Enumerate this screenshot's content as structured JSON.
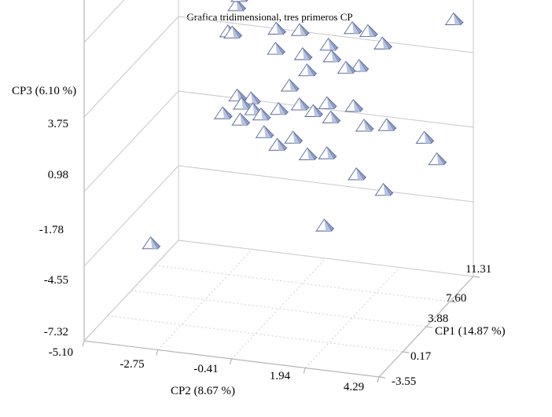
{
  "chart_data": {
    "type": "scatter3d",
    "title": "Grafica  tridimensional,  tres primeros  CP",
    "axes": {
      "x": {
        "label": "CP2 (8.67 %)",
        "ticks": [
          "-5.10",
          "-2.75",
          "-0.41",
          "1.94",
          "4.29"
        ],
        "range": [
          -5.1,
          4.29
        ]
      },
      "y": {
        "label": "CP1 (14.87 %)",
        "ticks": [
          "-3.55",
          "0.17",
          "3.88",
          "7.60",
          "11.31"
        ],
        "range": [
          -3.55,
          11.31
        ]
      },
      "z": {
        "label": "CP3 (6.10 %)",
        "ticks": [
          "-7.32",
          "-4.55",
          "-1.78",
          "0.98",
          "3.75"
        ],
        "range": [
          -7.32,
          3.75
        ]
      }
    },
    "marker": {
      "shape": "pyramid",
      "color": "#8fa0cf",
      "edge_color": "#5a6a9a"
    },
    "points": [
      {
        "x": -3.8,
        "y": 10.6,
        "z": 4.9
      },
      {
        "x": -3.4,
        "y": 10.2,
        "z": 3.1
      },
      {
        "x": -3.0,
        "y": 10.0,
        "z": 2.0
      },
      {
        "x": -2.8,
        "y": 9.5,
        "z": 2.5
      },
      {
        "x": -2.9,
        "y": 8.2,
        "z": 1.5
      },
      {
        "x": -2.6,
        "y": 7.4,
        "z": 1.7
      },
      {
        "x": -1.9,
        "y": 9.0,
        "z": 3.2
      },
      {
        "x": -1.2,
        "y": 10.5,
        "z": 3.4
      },
      {
        "x": 0.5,
        "y": 11.0,
        "z": 3.9
      },
      {
        "x": 2.5,
        "y": 10.6,
        "z": 4.3
      },
      {
        "x": 3.0,
        "y": 10.7,
        "z": 4.1
      },
      {
        "x": 3.8,
        "y": 10.6,
        "z": 2.3
      },
      {
        "x": 1.0,
        "y": 8.5,
        "z": 2.1
      },
      {
        "x": 1.6,
        "y": 8.0,
        "z": 2.2
      },
      {
        "x": 2.2,
        "y": 7.3,
        "z": 2.0
      },
      {
        "x": 0.4,
        "y": 7.7,
        "z": 1.6
      },
      {
        "x": -0.3,
        "y": 7.1,
        "z": 1.3
      },
      {
        "x": -0.6,
        "y": 8.1,
        "z": 1.9
      },
      {
        "x": -1.3,
        "y": 7.9,
        "z": 1.9
      },
      {
        "x": -1.0,
        "y": 6.3,
        "z": 1.6
      },
      {
        "x": -0.1,
        "y": 6.8,
        "z": 0.8
      },
      {
        "x": 0.8,
        "y": 6.2,
        "z": 1.6
      },
      {
        "x": 1.3,
        "y": 6.0,
        "z": 1.3
      },
      {
        "x": 1.7,
        "y": 6.1,
        "z": 1.4
      },
      {
        "x": 3.9,
        "y": 5.5,
        "z": -0.8
      },
      {
        "x": 4.4,
        "y": 5.0,
        "z": -1.4
      },
      {
        "x": 2.7,
        "y": 5.5,
        "z": -0.5
      },
      {
        "x": 1.6,
        "y": 5.7,
        "z": 0.0
      },
      {
        "x": 2.0,
        "y": 5.4,
        "z": -0.6
      },
      {
        "x": 0.9,
        "y": 5.6,
        "z": -0.5
      },
      {
        "x": 0.7,
        "y": 6.0,
        "z": -0.1
      },
      {
        "x": 0.3,
        "y": 5.8,
        "z": -0.4
      },
      {
        "x": -0.2,
        "y": 6.1,
        "z": -0.3
      },
      {
        "x": -0.7,
        "y": 7.0,
        "z": 0.1
      },
      {
        "x": -1.6,
        "y": 5.4,
        "z": -0.1
      },
      {
        "x": -1.8,
        "y": 4.9,
        "z": -0.2
      },
      {
        "x": -1.4,
        "y": 4.7,
        "z": -0.3
      },
      {
        "x": -2.0,
        "y": 5.2,
        "z": 0.0
      },
      {
        "x": -2.3,
        "y": 4.4,
        "z": -0.5
      },
      {
        "x": -1.7,
        "y": 4.2,
        "z": -0.6
      },
      {
        "x": -1.1,
        "y": 4.5,
        "z": -0.4
      },
      {
        "x": -0.9,
        "y": 4.0,
        "z": -0.9
      },
      {
        "x": -0.6,
        "y": 4.8,
        "z": -0.2
      },
      {
        "x": -0.4,
        "y": 3.6,
        "z": -1.2
      },
      {
        "x": 0.0,
        "y": 4.1,
        "z": -1.0
      },
      {
        "x": 0.5,
        "y": 3.9,
        "z": -1.5
      },
      {
        "x": 1.1,
        "y": 4.0,
        "z": -1.4
      },
      {
        "x": 2.0,
        "y": 4.2,
        "z": -2.1
      },
      {
        "x": 2.9,
        "y": 4.0,
        "z": -2.5
      },
      {
        "x": 1.3,
        "y": 2.6,
        "z": -3.7
      },
      {
        "x": -3.4,
        "y": -1.5,
        "z": -4.0
      }
    ]
  }
}
